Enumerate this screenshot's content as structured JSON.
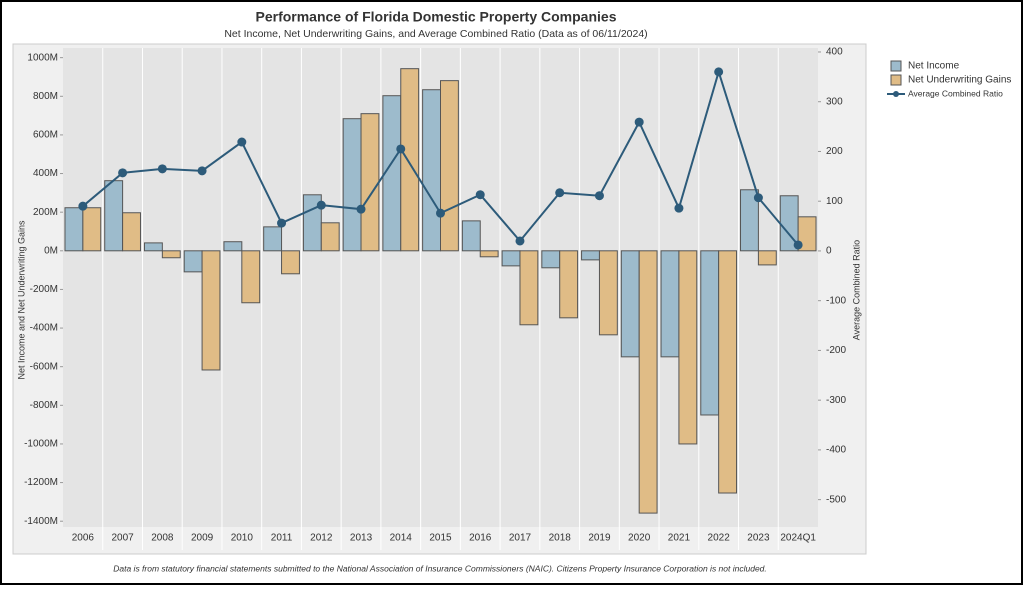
{
  "chart_data": {
    "type": "bar",
    "title": "Performance of Florida Domestic Property Companies",
    "subtitle": "Net Income, Net Underwriting Gains, and Average Combined Ratio (Data as of 06/11/2024)",
    "y_label": "Net Income and Net Underwriting Gains",
    "y2_label": "Average Combined Ratio",
    "footnote": "Data is from statutory financial statements submitted to the National Association of Insurance Commissioners (NAIC). Citizens Property Insurance Corporation is not included.",
    "categories": [
      "2006",
      "2007",
      "2008",
      "2009",
      "2010",
      "2011",
      "2012",
      "2013",
      "2014",
      "2015",
      "2016",
      "2017",
      "2018",
      "2019",
      "2020",
      "2021",
      "2022",
      "2023",
      "2024Q1"
    ],
    "series": [
      {
        "name": "Net Income",
        "type": "bar",
        "color": "#9dbbcc",
        "values": [
          223,
          363,
          41,
          -109,
          47,
          124,
          290,
          684,
          803,
          834,
          155,
          -78,
          -88,
          -47,
          -549,
          -549,
          -850,
          316,
          285
        ]
      },
      {
        "name": "Net Underwriting Gains",
        "type": "bar",
        "color": "#e0bc86",
        "values": [
          223,
          197,
          -36,
          -617,
          -269,
          -119,
          145,
          710,
          943,
          881,
          -31,
          -383,
          -347,
          -435,
          -1358,
          -1000,
          -1254,
          -73,
          176
        ]
      },
      {
        "name": "Average Combined Ratio",
        "type": "line",
        "axis": "y2",
        "color": "#2d5b7a",
        "values": [
          90,
          157,
          165,
          161,
          219,
          56,
          92,
          84,
          205,
          76,
          113,
          20,
          117,
          111,
          259,
          86,
          360,
          107,
          12
        ]
      }
    ],
    "ylim": [
      -1430,
      1050
    ],
    "yticks": [
      {
        "value": -1400,
        "label": "-1400M"
      },
      {
        "value": -1200,
        "label": "-1200M"
      },
      {
        "value": -1000,
        "label": "-1000M"
      },
      {
        "value": -800,
        "label": "-800M"
      },
      {
        "value": -600,
        "label": "-600M"
      },
      {
        "value": -400,
        "label": "-400M"
      },
      {
        "value": -200,
        "label": "-200M"
      },
      {
        "value": 0,
        "label": "0M"
      },
      {
        "value": 200,
        "label": "200M"
      },
      {
        "value": 400,
        "label": "400M"
      },
      {
        "value": 600,
        "label": "600M"
      },
      {
        "value": 800,
        "label": "800M"
      },
      {
        "value": 1000,
        "label": "1000M"
      }
    ],
    "y2lim": [
      -555,
      408
    ],
    "y2ticks": [
      -500,
      -400,
      -300,
      -200,
      -100,
      0,
      100,
      200,
      300,
      400
    ]
  }
}
